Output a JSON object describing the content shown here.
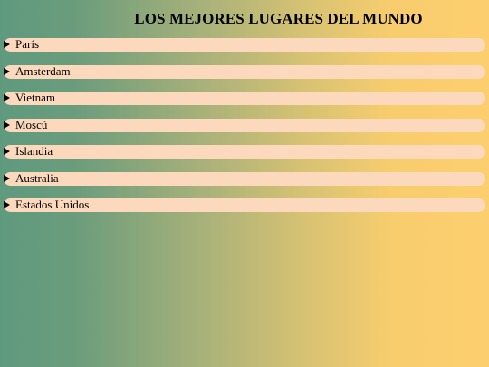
{
  "page": {
    "title": "LOS MEJORES LUGARES DEL MUNDO"
  },
  "places": [
    {
      "label": "París",
      "icon": "disclosure-triangle-right-icon"
    },
    {
      "label": "Amsterdam",
      "icon": "disclosure-triangle-right-icon"
    },
    {
      "label": "Vietnam",
      "icon": "disclosure-triangle-right-icon"
    },
    {
      "label": "Moscú",
      "icon": "disclosure-triangle-right-icon"
    },
    {
      "label": "Islandia",
      "icon": "disclosure-triangle-right-icon"
    },
    {
      "label": "Australia",
      "icon": "disclosure-triangle-right-icon"
    },
    {
      "label": "Estados Unidos",
      "icon": "disclosure-triangle-right-icon"
    }
  ],
  "colors": {
    "gradient_left": "#5f9a7f",
    "gradient_right": "#fdce6e",
    "item_background": "#fcd9bd",
    "text": "#000000"
  }
}
